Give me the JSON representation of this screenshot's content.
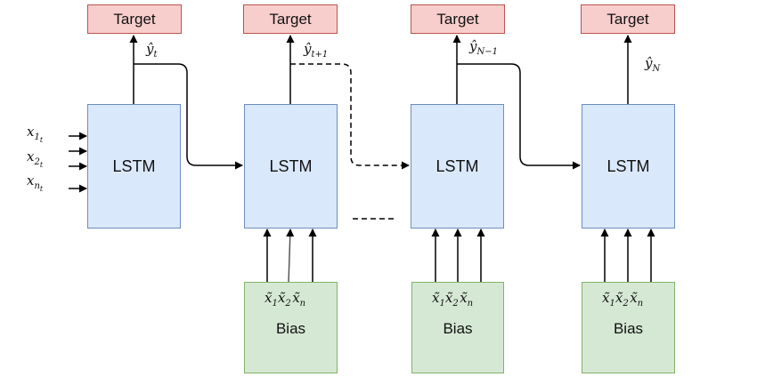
{
  "targets": [
    "Target",
    "Target",
    "Target",
    "Target"
  ],
  "lstm_labels": [
    "LSTM",
    "LSTM",
    "LSTM",
    "LSTM"
  ],
  "bias_labels": [
    "Bias",
    "Bias",
    "Bias"
  ],
  "predictions": [
    {
      "base": "ŷ",
      "sub": "t"
    },
    {
      "base": "ŷ",
      "sub": "t+1"
    },
    {
      "base": "ŷ",
      "sub": "N−1"
    },
    {
      "base": "ŷ",
      "sub": "N"
    }
  ],
  "inputs": [
    {
      "base": "x",
      "sub": "1",
      "subsub": "t"
    },
    {
      "base": "x",
      "sub": "2",
      "subsub": "t"
    },
    {
      "base": "x",
      "sub": "n",
      "subsub": "t"
    }
  ],
  "bias_inputs": [
    {
      "base": "x̃",
      "sub": "1"
    },
    {
      "base": "x̃",
      "sub": "2"
    },
    {
      "base": "x̃",
      "sub": "n"
    }
  ]
}
